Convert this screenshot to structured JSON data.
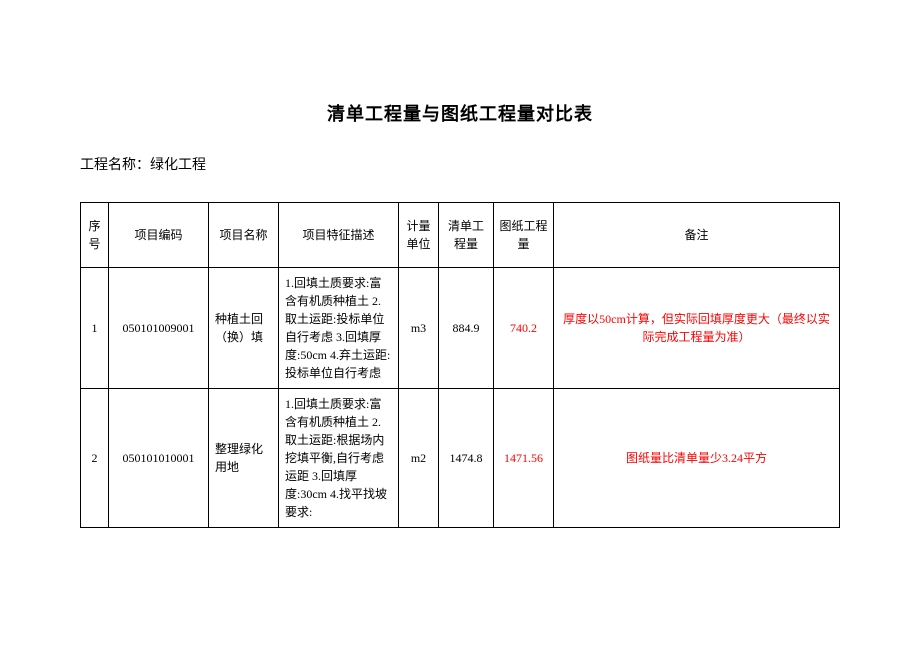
{
  "title": "清单工程量与图纸工程量对比表",
  "projectLabel": "工程名称：",
  "projectName": "绿化工程",
  "columns": [
    "序号",
    "项目编码",
    "项目名称",
    "项目特征描述",
    "计量单位",
    "清单工程量",
    "图纸工程量",
    "备注"
  ],
  "rows": [
    {
      "seq": "1",
      "code": "050101009001",
      "name": "种植土回（换）填",
      "desc": "1.回填土质要求:富含有机质种植土    2.取土运距:投标单位自行考虑    3.回填厚度:50cm    4.弃土运距:投标单位自行考虑",
      "unit": "m3",
      "qty1": "884.9",
      "qty2": "740.2",
      "remark": "厚度以50cm计算，但实际回填厚度更大（最终以实际完成工程量为准）"
    },
    {
      "seq": "2",
      "code": "050101010001",
      "name": "整理绿化用地",
      "desc": "1.回填土质要求:富含有机质种植土    2.取土运距:根据场内挖填平衡,自行考虑运距    3.回填厚度:30cm    4.找平找坡要求:",
      "unit": "m2",
      "qty1": "1474.8",
      "qty2": "1471.56",
      "remark": "图纸量比清单量少3.24平方"
    }
  ]
}
